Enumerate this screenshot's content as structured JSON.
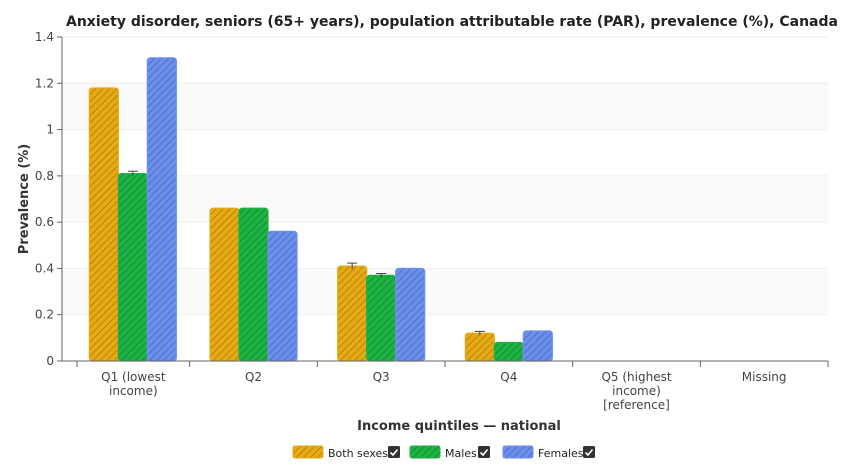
{
  "chart_data": {
    "type": "bar",
    "title": "Anxiety disorder, seniors (65+ years), population attributable rate (PAR), prevalence (%), Canada",
    "xlabel": "Income quintiles — national",
    "ylabel": "Prevalence (%)",
    "ylim": [
      0,
      1.4
    ],
    "yticks": [
      "0",
      "0.2",
      "0.4",
      "0.6",
      "0.8",
      "1",
      "1.2",
      "1.4"
    ],
    "grid": true,
    "legend_position": "bottom",
    "categories": [
      [
        "Q1 (lowest",
        "income)"
      ],
      [
        "Q2"
      ],
      [
        "Q3"
      ],
      [
        "Q4"
      ],
      [
        "Q5 (highest",
        "income)",
        "[reference]"
      ],
      [
        "Missing"
      ]
    ],
    "series": [
      {
        "name": "Both sexes",
        "color": "#E8AA14",
        "values": [
          1.18,
          0.66,
          0.41,
          0.12,
          null,
          null
        ],
        "errors": [
          null,
          null,
          0.013,
          0.008,
          null,
          null
        ]
      },
      {
        "name": "Males",
        "color": "#1DB344",
        "values": [
          0.81,
          0.66,
          0.37,
          0.08,
          null,
          null
        ],
        "errors": [
          0.01,
          null,
          0.008,
          null,
          null,
          null
        ]
      },
      {
        "name": "Females",
        "color": "#6B8FEF",
        "values": [
          1.31,
          0.56,
          0.4,
          0.13,
          null,
          null
        ],
        "errors": [
          null,
          null,
          null,
          null,
          null,
          null
        ]
      }
    ]
  }
}
